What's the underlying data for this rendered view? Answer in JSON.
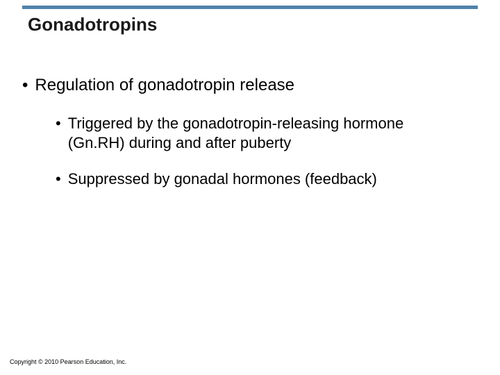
{
  "title": "Gonadotropins",
  "accent_color": "#4f81aa",
  "background_color": "#ffffff",
  "text_color": "#000000",
  "fonts": {
    "family": "Arial",
    "title_size_pt": 26,
    "lvl1_size_pt": 24,
    "lvl2_size_pt": 22
  },
  "bullets": {
    "lvl1": [
      {
        "text": "Regulation of gonadotropin release"
      }
    ],
    "lvl2": [
      {
        "text": "Triggered by the gonadotropin-releasing hormone (Gn.RH) during and after puberty"
      },
      {
        "text": "Suppressed by gonadal hormones (feedback)"
      }
    ]
  },
  "bullet_glyph": "•",
  "copyright": "Copyright © 2010 Pearson Education, Inc."
}
